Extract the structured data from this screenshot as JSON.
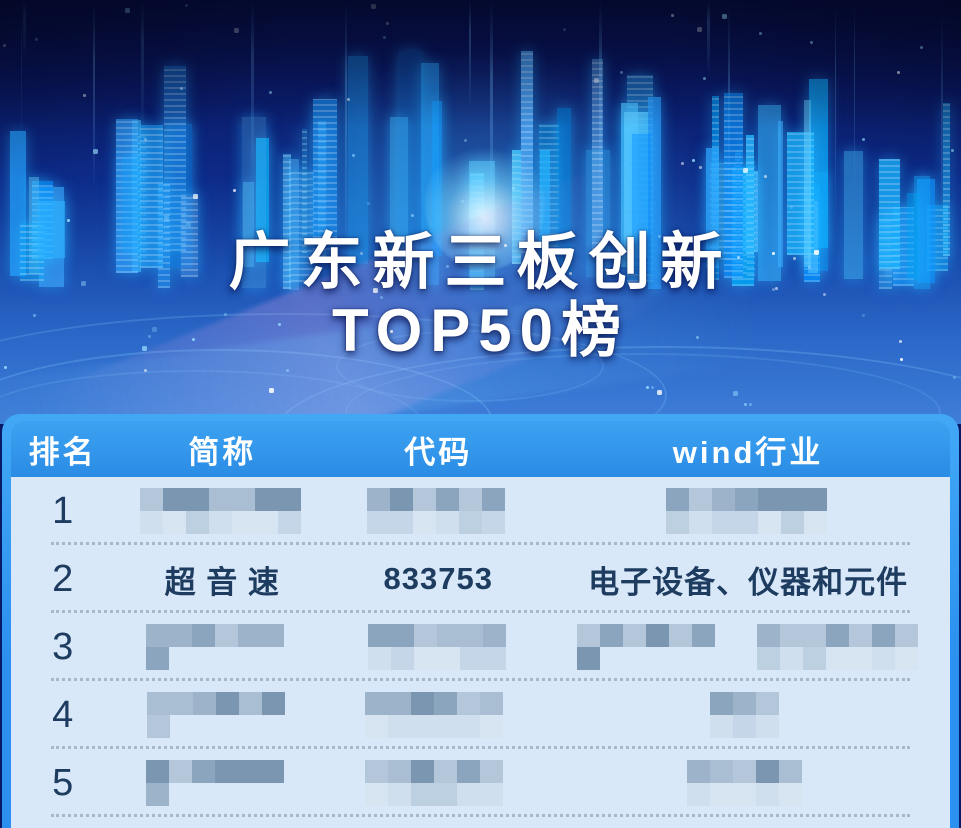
{
  "poster": {
    "title_line1": "广东新三板创新",
    "title_line2": "TOP50榜"
  },
  "table": {
    "columns": [
      {
        "label": "排名"
      },
      {
        "label": "简称"
      },
      {
        "label": "代码"
      },
      {
        "label": "wind行业"
      }
    ],
    "rows": [
      {
        "rank": "1",
        "name": "",
        "code": "",
        "industry": "",
        "censored": true,
        "mosaics": {
          "name": [
            165
          ],
          "code": [
            142
          ],
          "industry": [
            165
          ]
        }
      },
      {
        "rank": "2",
        "name": "超 音 速",
        "code": "833753",
        "industry": "电子设备、仪器和元件",
        "censored": false
      },
      {
        "rank": "3",
        "name": "",
        "code": "",
        "industry": "",
        "censored": true,
        "mosaics": {
          "name": [
            152
          ],
          "code": [
            140
          ],
          "industry": [
            160,
            162
          ]
        }
      },
      {
        "rank": "4",
        "name": "",
        "code": "",
        "industry": "",
        "censored": true,
        "mosaics": {
          "name": [
            150
          ],
          "code": [
            146
          ],
          "industry": [
            76
          ]
        }
      },
      {
        "rank": "5",
        "name": "",
        "code": "",
        "industry": "",
        "censored": true,
        "mosaics": {
          "name": [
            152
          ],
          "code": [
            146
          ],
          "industry": [
            122
          ]
        }
      }
    ]
  },
  "colors": {
    "card_blue": "#2e9af4",
    "header_blue": "#2a8ce4",
    "body_bg": "#d9e8f8",
    "row_text": "#1e3c60",
    "banner_deep": "#0a1a66",
    "skyline_glow": "#35c8ff",
    "mosaic_dark": [
      "#7b96b0",
      "#8aa5bd",
      "#9db3c9",
      "#a9bed3",
      "#b3c6da"
    ],
    "mosaic_light": [
      "#bcd0e2",
      "#c5d6e8",
      "#cfdfee",
      "#d7e5f2"
    ]
  }
}
